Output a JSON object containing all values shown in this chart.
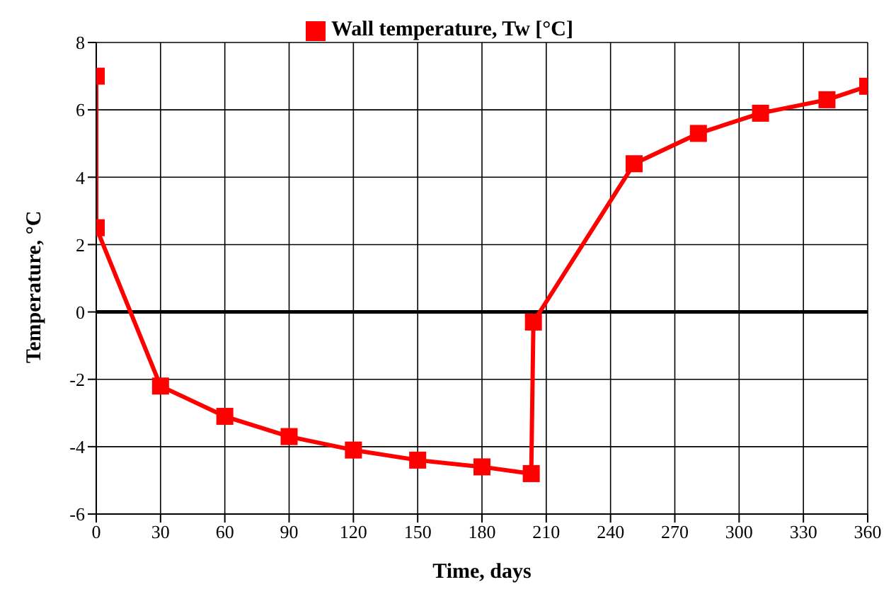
{
  "chart_data": {
    "type": "line",
    "xlabel": "Time, days",
    "ylabel": "Temperature, °C",
    "series": [
      {
        "name": "Wall temperature, Tw [°C]",
        "color": "#ff0000",
        "x": [
          0,
          0,
          30,
          60,
          90,
          120,
          150,
          180,
          203,
          204,
          251,
          281,
          310,
          341,
          360
        ],
        "values": [
          7,
          2.5,
          -2.2,
          -3.1,
          -3.7,
          -4.1,
          -4.4,
          -4.6,
          -4.8,
          -0.3,
          4.4,
          5.3,
          5.9,
          6.3,
          6.7
        ]
      }
    ],
    "xlim": [
      0,
      360
    ],
    "xticks": [
      0,
      30,
      60,
      90,
      120,
      150,
      180,
      210,
      240,
      270,
      300,
      330,
      360
    ],
    "ylim": [
      -6,
      8
    ],
    "yticks": [
      -6,
      -4,
      -2,
      0,
      2,
      4,
      6,
      8
    ],
    "ref_lines": [
      {
        "axis": "y",
        "value": 0,
        "color": "#000000"
      }
    ],
    "grid": true,
    "legend": "top",
    "marker": "square",
    "line_style": "solid"
  }
}
